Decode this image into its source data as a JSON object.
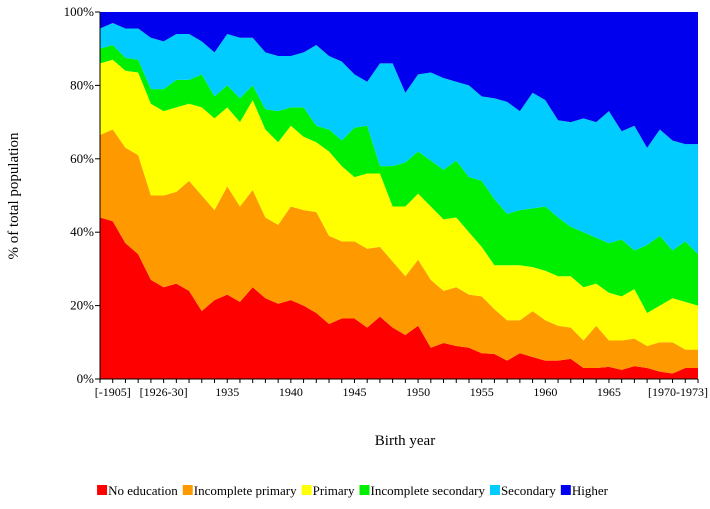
{
  "chart_data": {
    "type": "stacked-area",
    "x_label": "Birth year",
    "y_label": "% of total population",
    "categories": [
      null,
      "[-1905]",
      null,
      null,
      null,
      "[1926-30]",
      null,
      null,
      null,
      null,
      "1935",
      null,
      null,
      null,
      null,
      "1940",
      null,
      null,
      null,
      null,
      "1945",
      null,
      null,
      null,
      null,
      "1950",
      null,
      null,
      null,
      null,
      "1955",
      null,
      null,
      null,
      null,
      "1960",
      null,
      null,
      null,
      null,
      "1965",
      null,
      null,
      null,
      null,
      null,
      null,
      "[1970-1973]"
    ],
    "ylim": [
      0,
      100
    ],
    "yticks": [
      {
        "value": 0,
        "label": "0%"
      },
      {
        "value": 20,
        "label": "20%"
      },
      {
        "value": 40,
        "label": "40%"
      },
      {
        "value": 60,
        "label": "60%"
      },
      {
        "value": 80,
        "label": "80%"
      },
      {
        "value": 100,
        "label": "100%"
      }
    ],
    "legend": "bottom",
    "series": [
      {
        "name": "No education",
        "color": "#ff0000",
        "values": [
          44,
          43,
          37,
          34,
          27,
          25,
          26,
          24,
          18.5,
          21.5,
          23,
          21,
          25,
          22,
          20.5,
          21.5,
          20,
          18,
          15,
          16.5,
          16.5,
          14,
          17,
          14,
          12,
          14.5,
          8.5,
          9.8,
          9,
          8.5,
          7,
          6.8,
          5,
          7,
          6,
          5,
          5,
          5.5,
          3,
          3,
          3.3,
          2.5,
          3.5,
          3,
          2,
          1.5,
          3,
          3
        ]
      },
      {
        "name": "Incomplete primary",
        "color": "#ff9900",
        "values": [
          22.5,
          25,
          26,
          27,
          23,
          25,
          25,
          30,
          31.5,
          24.5,
          29.5,
          26,
          26.5,
          22,
          21.5,
          25.5,
          26,
          27.5,
          24,
          21,
          21,
          21.5,
          19,
          18,
          16,
          18,
          18.5,
          14.2,
          16,
          14.5,
          15.5,
          12.2,
          11,
          9,
          12.5,
          11,
          9.5,
          8.5,
          7.5,
          11.5,
          7.2,
          8,
          7.5,
          6,
          8,
          8.5,
          5,
          5
        ]
      },
      {
        "name": "Primary",
        "color": "#ffff00",
        "values": [
          19.5,
          19,
          21,
          22.5,
          25,
          23,
          23,
          21,
          24,
          25,
          21.5,
          23,
          24.5,
          24,
          22.5,
          22,
          20,
          19,
          23,
          20.5,
          17.5,
          20.5,
          20,
          15,
          19,
          18,
          20,
          19.5,
          19,
          17,
          13.5,
          12,
          15,
          15,
          12,
          13.5,
          13.5,
          14,
          14.5,
          11.5,
          13,
          12,
          13.5,
          9,
          10,
          12,
          13,
          12
        ]
      },
      {
        "name": "Incomplete secondary",
        "color": "#00ee00",
        "values": [
          4,
          4,
          3.5,
          3.5,
          4,
          6,
          7.5,
          6.5,
          9,
          6,
          6,
          6.5,
          4,
          5.5,
          8.5,
          5,
          8,
          4.5,
          6,
          7,
          13.5,
          13,
          2,
          11,
          12,
          11.5,
          12.5,
          13.5,
          15.5,
          15,
          18,
          18,
          14,
          15,
          16,
          17.5,
          16,
          13.5,
          15,
          12.5,
          13.5,
          15.5,
          10.5,
          18.5,
          19,
          13,
          16.5,
          14
        ]
      },
      {
        "name": "Secondary",
        "color": "#00ccff",
        "values": [
          5.5,
          6,
          8,
          8.5,
          14,
          13,
          12.5,
          12.5,
          9,
          12,
          14,
          16.5,
          13,
          15.5,
          15,
          14,
          15,
          22,
          20,
          21.5,
          14.5,
          12,
          28,
          28,
          19,
          21,
          24,
          25,
          21.5,
          25,
          23,
          27.5,
          30.5,
          27,
          31.5,
          29,
          26.5,
          28.5,
          31,
          31.5,
          36,
          29.5,
          34,
          26.5,
          29,
          30,
          26.5,
          30
        ]
      },
      {
        "name": "Higher",
        "color": "#0000ee",
        "values": [
          4.5,
          3,
          4.5,
          4.5,
          7,
          8,
          6,
          6,
          8,
          11,
          6,
          7,
          7,
          11,
          12,
          12,
          11,
          9,
          12,
          13.5,
          17,
          19,
          14,
          14,
          22,
          17,
          16.5,
          18,
          19,
          20,
          23,
          23.5,
          24.5,
          27,
          22,
          24,
          29.5,
          30,
          29,
          30,
          27,
          32.5,
          31,
          37,
          32,
          35,
          36,
          36
        ]
      }
    ]
  }
}
